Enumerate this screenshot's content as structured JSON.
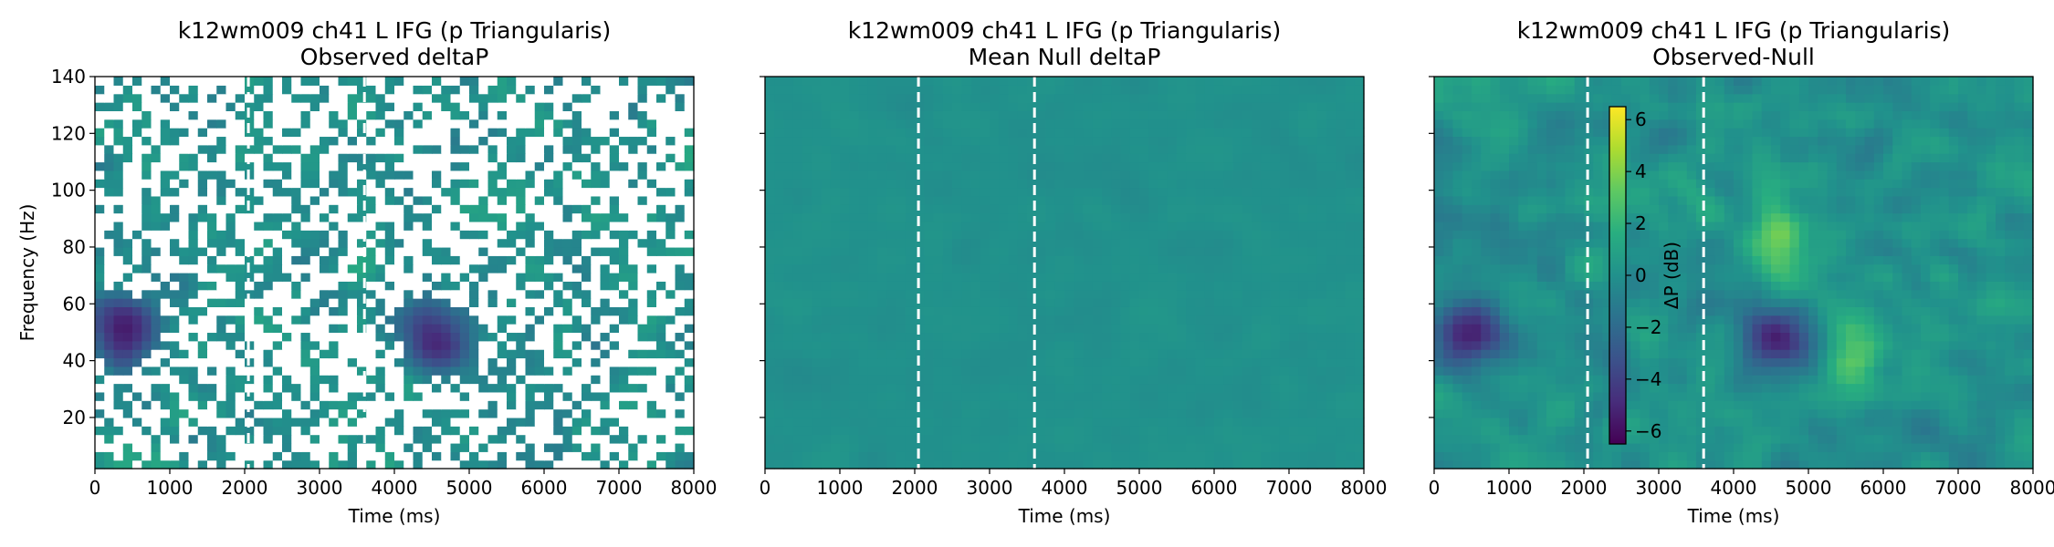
{
  "chart_data": [
    {
      "type": "heatmap",
      "title": "k12wm009 ch41 L IFG (p Triangularis)",
      "subtitle": "Observed deltaP",
      "xlabel": "Time (ms)",
      "ylabel": "Frequency (Hz)",
      "xlim": [
        0,
        8000
      ],
      "ylim": [
        2,
        140
      ],
      "xticks": [
        0,
        1000,
        2000,
        3000,
        4000,
        5000,
        6000,
        7000,
        8000
      ],
      "yticks": [
        20,
        40,
        60,
        80,
        100,
        120,
        140
      ],
      "colormap": "viridis",
      "clim": [
        -6.5,
        6.5
      ],
      "masked_nonsignificant_bins": true,
      "event_lines_ms": [
        2050,
        3600
      ],
      "dark_spots": [
        {
          "time_ms": 450,
          "freq_hz": 50,
          "value_db": -5.5
        },
        {
          "time_ms": 4550,
          "freq_hz": 48,
          "value_db": -5.0
        }
      ]
    },
    {
      "type": "heatmap",
      "title": "k12wm009 ch41 L IFG (p Triangularis)",
      "subtitle": "Mean Null deltaP",
      "xlabel": "Time (ms)",
      "ylabel": "",
      "xlim": [
        0,
        8000
      ],
      "ylim": [
        2,
        140
      ],
      "xticks": [
        0,
        1000,
        2000,
        3000,
        4000,
        5000,
        6000,
        7000,
        8000
      ],
      "yticks": [
        20,
        40,
        60,
        80,
        100,
        120,
        140
      ],
      "colormap": "viridis",
      "clim": [
        -6.5,
        6.5
      ],
      "approx_value_db": 0,
      "event_lines_ms": [
        2050,
        3600
      ]
    },
    {
      "type": "heatmap",
      "title": "k12wm009 ch41 L IFG (p Triangularis)",
      "subtitle": "Observed-Null",
      "xlabel": "Time (ms)",
      "ylabel": "",
      "xlim": [
        0,
        8000
      ],
      "ylim": [
        2,
        140
      ],
      "xticks": [
        0,
        1000,
        2000,
        3000,
        4000,
        5000,
        6000,
        7000,
        8000
      ],
      "yticks": [
        20,
        40,
        60,
        80,
        100,
        120,
        140
      ],
      "colormap": "viridis",
      "clim": [
        -6.5,
        6.5
      ],
      "event_lines_ms": [
        2050,
        3600
      ],
      "dark_spots": [
        {
          "time_ms": 450,
          "freq_hz": 50,
          "value_db": -5.5
        },
        {
          "time_ms": 4550,
          "freq_hz": 48,
          "value_db": -5.0
        }
      ],
      "bright_spots": [
        {
          "time_ms": 4600,
          "freq_hz": 80,
          "value_db": 3.5
        },
        {
          "time_ms": 5600,
          "freq_hz": 45,
          "value_db": 3.0
        }
      ],
      "colorbar": {
        "label": "ΔP (dB)",
        "ticks": [
          -6,
          -4,
          -2,
          0,
          2,
          4,
          6
        ],
        "tick_labels": [
          "−6",
          "−4",
          "−2",
          "0",
          "2",
          "4",
          "6"
        ],
        "placement": "inside-left"
      }
    }
  ]
}
